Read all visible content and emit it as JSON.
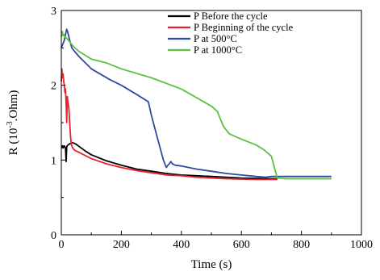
{
  "chart_data": {
    "type": "line",
    "xlabel": "Time (s)",
    "ylabel_prefix": "R (10",
    "ylabel_exp": "-3",
    "ylabel_suffix": ".Ohm)",
    "xlim": [
      0,
      1000
    ],
    "ylim": [
      0,
      3
    ],
    "xticks": [
      0,
      200,
      400,
      600,
      800,
      1000
    ],
    "yticks": [
      0,
      1,
      2,
      3
    ],
    "grid": false,
    "legend_position": "top-right",
    "series": [
      {
        "name": "P Before the cycle",
        "color": "#000000",
        "x": [
          0,
          2,
          4,
          6,
          8,
          10,
          12,
          14,
          16,
          18,
          20,
          22,
          25,
          30,
          35,
          40,
          45,
          50,
          60,
          80,
          100,
          150,
          200,
          250,
          300,
          350,
          400,
          450,
          500,
          550,
          600,
          650,
          700,
          720
        ],
        "y": [
          1.18,
          1.17,
          1.19,
          1.16,
          1.18,
          1.19,
          1.17,
          1.16,
          0.98,
          1.18,
          1.19,
          1.2,
          1.21,
          1.22,
          1.23,
          1.23,
          1.22,
          1.21,
          1.18,
          1.12,
          1.07,
          0.99,
          0.93,
          0.88,
          0.85,
          0.82,
          0.8,
          0.79,
          0.78,
          0.77,
          0.76,
          0.755,
          0.75,
          0.75
        ]
      },
      {
        "name": "P Beginning of the cycle",
        "color": "#e8222a",
        "x": [
          0,
          2,
          4,
          6,
          8,
          10,
          12,
          14,
          16,
          18,
          20,
          22,
          25,
          28,
          31,
          34,
          37,
          40,
          45,
          50,
          60,
          80,
          100,
          150,
          200,
          250,
          300,
          350,
          400,
          450,
          500,
          550,
          600,
          650,
          700,
          720
        ],
        "y": [
          2.05,
          2.22,
          2.1,
          2.15,
          2.05,
          2.0,
          1.9,
          1.95,
          1.75,
          1.5,
          1.85,
          1.78,
          1.7,
          1.5,
          1.3,
          1.2,
          1.17,
          1.15,
          1.13,
          1.12,
          1.1,
          1.06,
          1.02,
          0.95,
          0.9,
          0.86,
          0.83,
          0.8,
          0.79,
          0.77,
          0.76,
          0.75,
          0.745,
          0.74,
          0.74,
          0.74
        ]
      },
      {
        "name": "P at 500°C",
        "color": "#2f4a9e",
        "x": [
          0,
          5,
          10,
          15,
          18,
          22,
          28,
          35,
          45,
          60,
          80,
          100,
          130,
          160,
          200,
          250,
          290,
          300,
          320,
          340,
          350,
          355,
          360,
          365,
          370,
          380,
          400,
          450,
          500,
          550,
          600,
          650,
          680,
          700,
          750,
          800,
          850,
          900
        ],
        "y": [
          2.5,
          2.55,
          2.6,
          2.7,
          2.75,
          2.7,
          2.6,
          2.5,
          2.45,
          2.38,
          2.3,
          2.22,
          2.15,
          2.08,
          2.0,
          1.88,
          1.78,
          1.6,
          1.3,
          1.0,
          0.9,
          0.93,
          0.95,
          0.98,
          0.95,
          0.93,
          0.92,
          0.88,
          0.85,
          0.82,
          0.8,
          0.78,
          0.77,
          0.78,
          0.78,
          0.78,
          0.78,
          0.78
        ]
      },
      {
        "name": "P at 1000°C",
        "color": "#5cc13e",
        "x": [
          0,
          3,
          6,
          9,
          12,
          20,
          40,
          60,
          80,
          100,
          150,
          200,
          300,
          400,
          500,
          520,
          540,
          560,
          600,
          650,
          670,
          680,
          700,
          710,
          720,
          750,
          800,
          850,
          900
        ],
        "y": [
          2.65,
          2.72,
          2.66,
          2.68,
          2.65,
          2.62,
          2.52,
          2.45,
          2.4,
          2.35,
          2.3,
          2.22,
          2.1,
          1.95,
          1.72,
          1.65,
          1.45,
          1.35,
          1.28,
          1.2,
          1.15,
          1.12,
          1.05,
          0.9,
          0.76,
          0.75,
          0.75,
          0.75,
          0.75
        ]
      }
    ]
  }
}
